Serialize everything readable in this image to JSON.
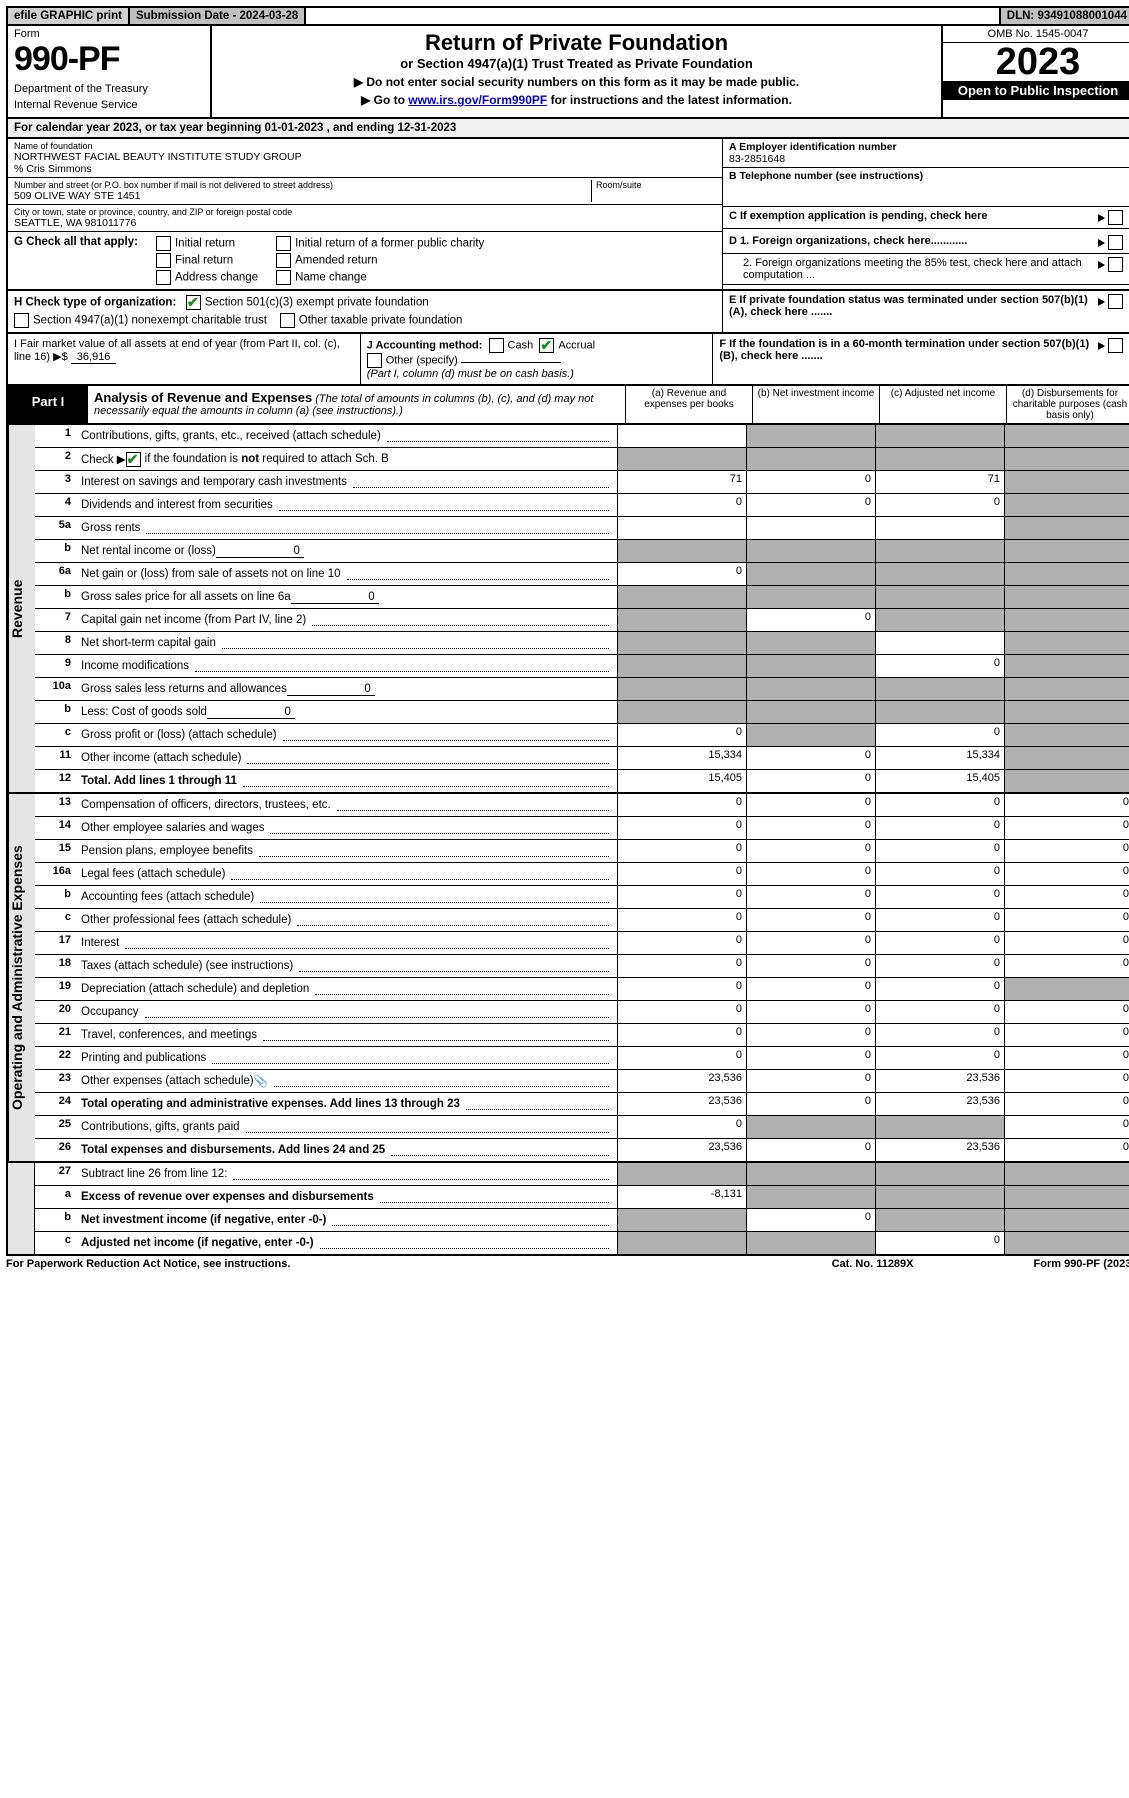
{
  "topbar": {
    "efile": "efile GRAPHIC print",
    "submission": "Submission Date - 2024-03-28",
    "dln": "DLN: 93491088001044"
  },
  "header": {
    "form_word": "Form",
    "form_number": "990-PF",
    "dept": "Department of the Treasury",
    "irs": "Internal Revenue Service",
    "title": "Return of Private Foundation",
    "subtitle": "or Section 4947(a)(1) Trust Treated as Private Foundation",
    "note1": "▶ Do not enter social security numbers on this form as it may be made public.",
    "note2_pre": "▶ Go to ",
    "note2_link": "www.irs.gov/Form990PF",
    "note2_post": " for instructions and the latest information.",
    "omb": "OMB No. 1545-0047",
    "year": "2023",
    "open": "Open to Public Inspection"
  },
  "cal_year": "For calendar year 2023, or tax year beginning 01-01-2023                      , and ending 12-31-2023",
  "info": {
    "name_label": "Name of foundation",
    "name": "NORTHWEST FACIAL BEAUTY INSTITUTE STUDY GROUP",
    "co": "% Cris Simmons",
    "addr_label": "Number and street (or P.O. box number if mail is not delivered to street address)",
    "addr": "509 OLIVE WAY STE 1451",
    "room_label": "Room/suite",
    "city_label": "City or town, state or province, country, and ZIP or foreign postal code",
    "city": "SEATTLE, WA  981011776",
    "a_label": "A Employer identification number",
    "ein": "83-2851648",
    "b_label": "B Telephone number (see instructions)",
    "c_label": "C If exemption application is pending, check here",
    "d1": "D 1. Foreign organizations, check here............",
    "d2": "2. Foreign organizations meeting the 85% test, check here and attach computation ...",
    "e": "E  If private foundation status was terminated under section 507(b)(1)(A), check here .......",
    "f": "F  If the foundation is in a 60-month termination under section 507(b)(1)(B), check here .......",
    "g_label": "G Check all that apply:",
    "g_opts": [
      "Initial return",
      "Final return",
      "Address change",
      "Initial return of a former public charity",
      "Amended return",
      "Name change"
    ],
    "h_label": "H Check type of organization:",
    "h1": "Section 501(c)(3) exempt private foundation",
    "h2": "Section 4947(a)(1) nonexempt charitable trust",
    "h3": "Other taxable private foundation",
    "i_label": "I Fair market value of all assets at end of year (from Part II, col. (c), line 16) ▶$",
    "i_val": "36,916",
    "j_label": "J Accounting method:",
    "j_cash": "Cash",
    "j_accrual": "Accrual",
    "j_other": "Other (specify)",
    "j_note": "(Part I, column (d) must be on cash basis.)"
  },
  "part1": {
    "label": "Part I",
    "title": "Analysis of Revenue and Expenses",
    "title_note": " (The total of amounts in columns (b), (c), and (d) may not necessarily equal the amounts in column (a) (see instructions).)",
    "col_a": "(a)   Revenue and expenses per books",
    "col_b": "(b)  Net investment income",
    "col_c": "(c)  Adjusted net income",
    "col_d": "(d)  Disbursements for charitable purposes (cash basis only)"
  },
  "side_rev": "Revenue",
  "side_exp": "Operating and Administrative Expenses",
  "rows": {
    "r1": {
      "n": "1",
      "d": "Contributions, gifts, grants, etc., received (attach schedule)"
    },
    "r2": {
      "n": "2",
      "d_pre": "Check ▶ ",
      "d_post": " if the foundation is not required to attach Sch. B"
    },
    "r3": {
      "n": "3",
      "d": "Interest on savings and temporary cash investments",
      "a": "71",
      "b": "0",
      "c": "71"
    },
    "r4": {
      "n": "4",
      "d": "Dividends and interest from securities",
      "a": "0",
      "b": "0",
      "c": "0"
    },
    "r5a": {
      "n": "5a",
      "d": "Gross rents"
    },
    "r5b": {
      "n": "b",
      "d": "Net rental income or (loss)",
      "inline": "0"
    },
    "r6a": {
      "n": "6a",
      "d": "Net gain or (loss) from sale of assets not on line 10",
      "a": "0"
    },
    "r6b": {
      "n": "b",
      "d": "Gross sales price for all assets on line 6a",
      "inline": "0"
    },
    "r7": {
      "n": "7",
      "d": "Capital gain net income (from Part IV, line 2)",
      "b": "0"
    },
    "r8": {
      "n": "8",
      "d": "Net short-term capital gain"
    },
    "r9": {
      "n": "9",
      "d": "Income modifications",
      "c": "0"
    },
    "r10a": {
      "n": "10a",
      "d": "Gross sales less returns and allowances",
      "inline": "0"
    },
    "r10b": {
      "n": "b",
      "d": "Less: Cost of goods sold",
      "inline": "0"
    },
    "r10c": {
      "n": "c",
      "d": "Gross profit or (loss) (attach schedule)",
      "a": "0",
      "c": "0"
    },
    "r11": {
      "n": "11",
      "d": "Other income (attach schedule)",
      "a": "15,334",
      "b": "0",
      "c": "15,334"
    },
    "r12": {
      "n": "12",
      "d": "Total. Add lines 1 through 11",
      "a": "15,405",
      "b": "0",
      "c": "15,405",
      "bold": true
    },
    "r13": {
      "n": "13",
      "d": "Compensation of officers, directors, trustees, etc.",
      "a": "0",
      "b": "0",
      "c": "0",
      "d4": "0"
    },
    "r14": {
      "n": "14",
      "d": "Other employee salaries and wages",
      "a": "0",
      "b": "0",
      "c": "0",
      "d4": "0"
    },
    "r15": {
      "n": "15",
      "d": "Pension plans, employee benefits",
      "a": "0",
      "b": "0",
      "c": "0",
      "d4": "0"
    },
    "r16a": {
      "n": "16a",
      "d": "Legal fees (attach schedule)",
      "a": "0",
      "b": "0",
      "c": "0",
      "d4": "0"
    },
    "r16b": {
      "n": "b",
      "d": "Accounting fees (attach schedule)",
      "a": "0",
      "b": "0",
      "c": "0",
      "d4": "0"
    },
    "r16c": {
      "n": "c",
      "d": "Other professional fees (attach schedule)",
      "a": "0",
      "b": "0",
      "c": "0",
      "d4": "0"
    },
    "r17": {
      "n": "17",
      "d": "Interest",
      "a": "0",
      "b": "0",
      "c": "0",
      "d4": "0"
    },
    "r18": {
      "n": "18",
      "d": "Taxes (attach schedule) (see instructions)",
      "a": "0",
      "b": "0",
      "c": "0",
      "d4": "0"
    },
    "r19": {
      "n": "19",
      "d": "Depreciation (attach schedule) and depletion",
      "a": "0",
      "b": "0",
      "c": "0"
    },
    "r20": {
      "n": "20",
      "d": "Occupancy",
      "a": "0",
      "b": "0",
      "c": "0",
      "d4": "0"
    },
    "r21": {
      "n": "21",
      "d": "Travel, conferences, and meetings",
      "a": "0",
      "b": "0",
      "c": "0",
      "d4": "0"
    },
    "r22": {
      "n": "22",
      "d": "Printing and publications",
      "a": "0",
      "b": "0",
      "c": "0",
      "d4": "0"
    },
    "r23": {
      "n": "23",
      "d": "Other expenses (attach schedule)",
      "a": "23,536",
      "b": "0",
      "c": "23,536",
      "d4": "0",
      "icon": true
    },
    "r24": {
      "n": "24",
      "d": "Total operating and administrative expenses. Add lines 13 through 23",
      "a": "23,536",
      "b": "0",
      "c": "23,536",
      "d4": "0",
      "bold": true
    },
    "r25": {
      "n": "25",
      "d": "Contributions, gifts, grants paid",
      "a": "0",
      "d4": "0"
    },
    "r26": {
      "n": "26",
      "d": "Total expenses and disbursements. Add lines 24 and 25",
      "a": "23,536",
      "b": "0",
      "c": "23,536",
      "d4": "0",
      "bold": true
    },
    "r27": {
      "n": "27",
      "d": "Subtract line 26 from line 12:"
    },
    "r27a": {
      "n": "a",
      "d": "Excess of revenue over expenses and disbursements",
      "a": "-8,131",
      "bold": true
    },
    "r27b": {
      "n": "b",
      "d": "Net investment income (if negative, enter -0-)",
      "b": "0",
      "bold": true
    },
    "r27c": {
      "n": "c",
      "d": "Adjusted net income (if negative, enter -0-)",
      "c": "0",
      "bold": true
    }
  },
  "footer": {
    "left": "For Paperwork Reduction Act Notice, see instructions.",
    "mid": "Cat. No. 11289X",
    "right": "Form 990-PF (2023)"
  },
  "colors": {
    "shade": "#b0b0b0",
    "header_bg": "#e5e5e5"
  }
}
